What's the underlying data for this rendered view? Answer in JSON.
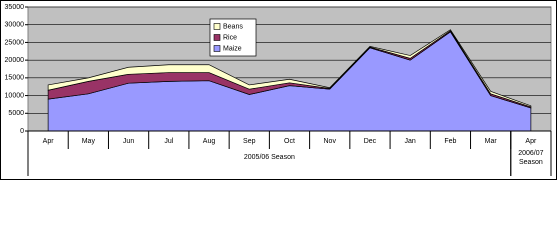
{
  "chart_data": {
    "type": "area",
    "stacked": true,
    "categories": [
      "Apr",
      "May",
      "Jun",
      "Jul",
      "Aug",
      "Sep",
      "Oct",
      "Nov",
      "Dec",
      "Jan",
      "Feb",
      "Mar",
      "Apr"
    ],
    "groups": [
      {
        "label": "2005/06 Season",
        "span": 12
      },
      {
        "label": "2006/07 Season",
        "span": 1
      }
    ],
    "series": [
      {
        "name": "Maize",
        "color": "#9999ff",
        "values": [
          9000,
          10500,
          13500,
          14000,
          14200,
          10300,
          12800,
          11800,
          23500,
          20000,
          28000,
          10000,
          6500
        ]
      },
      {
        "name": "Rice",
        "color": "#993366",
        "values": [
          2500,
          3500,
          2500,
          2500,
          2300,
          1500,
          800,
          200,
          200,
          500,
          300,
          500,
          300
        ]
      },
      {
        "name": "Beans",
        "color": "#ffffcc",
        "values": [
          1500,
          1000,
          2000,
          2200,
          2200,
          1200,
          1000,
          200,
          200,
          800,
          300,
          700,
          300
        ]
      }
    ],
    "ylim": [
      0,
      35000
    ],
    "yticks": [
      0,
      5000,
      10000,
      15000,
      20000,
      25000,
      30000,
      35000
    ],
    "grid": true,
    "legend": "top",
    "plot_background": "#c0c0c0"
  }
}
